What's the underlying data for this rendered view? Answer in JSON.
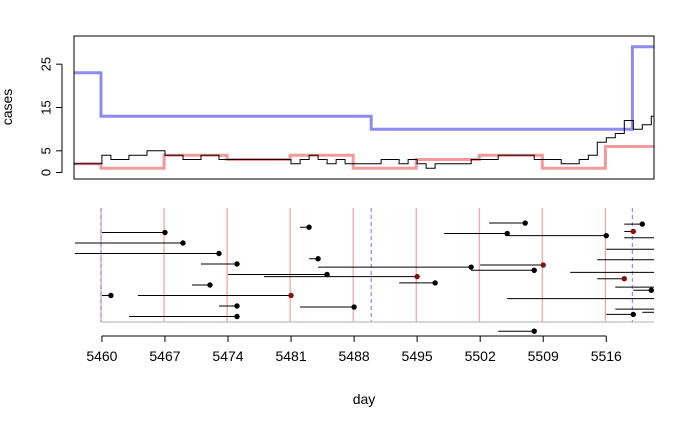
{
  "chart_data": [
    {
      "type": "line",
      "ylabel": "cases",
      "yticks": [
        0,
        5,
        15,
        25
      ],
      "ylim": [
        -1.5,
        31.5
      ],
      "xlim": [
        5456.9,
        5521.3
      ],
      "series": [
        {
          "kind": "step",
          "color": "#8c8cf0",
          "width": 3,
          "x": [
            5456.9,
            5459.9,
            5459.9,
            5489.9,
            5489.9,
            5518.9,
            5518.9,
            5521.3
          ],
          "y": [
            23,
            23,
            13,
            13,
            10,
            10,
            29,
            29
          ]
        },
        {
          "kind": "step",
          "color": "#f59a9a",
          "width": 3,
          "x": [
            5456.9,
            5459.9,
            5459.9,
            5466.9,
            5466.9,
            5473.9,
            5473.9,
            5480.9,
            5480.9,
            5487.9,
            5487.9,
            5494.9,
            5494.9,
            5501.9,
            5501.9,
            5508.9,
            5508.9,
            5515.9,
            5515.9,
            5521.3
          ],
          "y": [
            2,
            2,
            1,
            1,
            4,
            4,
            3,
            3,
            4,
            4,
            1,
            1,
            3,
            3,
            4,
            4,
            1,
            1,
            6,
            6
          ]
        },
        {
          "kind": "step",
          "color": "#000000",
          "width": 1,
          "x": [
            5456.9,
            5459.9,
            5460,
            5461,
            5463,
            5465,
            5467,
            5469,
            5471,
            5473,
            5474,
            5476,
            5481,
            5482,
            5483,
            5484,
            5485,
            5486,
            5487,
            5488,
            5491,
            5492,
            5493,
            5494,
            5495,
            5496,
            5497,
            5498,
            5499,
            5500,
            5501,
            5502,
            5503,
            5504,
            5505,
            5508,
            5509,
            5511,
            5513,
            5514,
            5515,
            5516,
            5517,
            5518,
            5519,
            5520,
            5521,
            5521.3
          ],
          "y": [
            2,
            2,
            4,
            3,
            4,
            5,
            4,
            3,
            4,
            3,
            3,
            3,
            2,
            3,
            4,
            3,
            2,
            3,
            2,
            2,
            3,
            3,
            2,
            3,
            2,
            1,
            2,
            2,
            2,
            2,
            3,
            3,
            3,
            4,
            4,
            3,
            3,
            2,
            3,
            4,
            7,
            8,
            9,
            12,
            10,
            11,
            13,
            13
          ]
        }
      ]
    },
    {
      "type": "scatter",
      "xlabel": "day",
      "xticks": [
        "5460",
        "5467",
        "5474",
        "5481",
        "5488",
        "5495",
        "5502",
        "5509",
        "5516"
      ],
      "xlim": [
        5456.9,
        5521.3
      ],
      "red_vlines": [
        5459.9,
        5466.9,
        5473.9,
        5480.9,
        5487.9,
        5494.9,
        5501.9,
        5508.9,
        5515.9
      ],
      "blue_dashed_vlines": [
        5459.9,
        5489.9,
        5518.9
      ],
      "intervals": [
        {
          "start": 5460,
          "end": 5467,
          "row": 1,
          "point": "dark"
        },
        {
          "start": 5457,
          "end": 5469,
          "row": 2,
          "point": "dark"
        },
        {
          "start": 5457,
          "end": 5473,
          "row": 3,
          "point": "dark"
        },
        {
          "start": 5471,
          "end": 5475,
          "row": 4,
          "point": "dark"
        },
        {
          "start": 5474,
          "end": 5485,
          "row": 5,
          "point": "dark"
        },
        {
          "start": 5470,
          "end": 5472,
          "row": 6,
          "point": "dark"
        },
        {
          "start": 5460,
          "end": 5461,
          "row": 7,
          "point": "dark"
        },
        {
          "start": 5464,
          "end": 5481,
          "row": 7,
          "point": "red"
        },
        {
          "start": 5473,
          "end": 5475,
          "row": 8,
          "point": "dark"
        },
        {
          "start": 5463,
          "end": 5475,
          "row": 9,
          "point": "dark"
        },
        {
          "start": 5482,
          "end": 5483,
          "row": 0.5,
          "point": "dark"
        },
        {
          "start": 5483,
          "end": 5484,
          "row": 3.5,
          "point": "dark"
        },
        {
          "start": 5484,
          "end": 5501,
          "row": 4.3,
          "point": "dark"
        },
        {
          "start": 5478,
          "end": 5495,
          "row": 5.2,
          "point": "red"
        },
        {
          "start": 5493,
          "end": 5497,
          "row": 5.8,
          "point": "dark"
        },
        {
          "start": 5482,
          "end": 5488,
          "row": 8.1,
          "point": "dark"
        },
        {
          "start": 5503,
          "end": 5507,
          "row": 0.1,
          "point": "dark"
        },
        {
          "start": 5498,
          "end": 5505,
          "row": 1.1,
          "point": "dark"
        },
        {
          "start": 5505,
          "end": 5516,
          "row": 1.3,
          "point": "dark"
        },
        {
          "start": 5502,
          "end": 5509,
          "row": 4.1,
          "point": "red"
        },
        {
          "start": 5501,
          "end": 5508,
          "row": 4.6,
          "point": "dark"
        },
        {
          "start": 5504,
          "end": 5508,
          "row": 10.4,
          "point": "dark"
        },
        {
          "start": 5518,
          "end": 5520,
          "row": 0.2,
          "point": "dark"
        },
        {
          "start": 5518,
          "end": 5519,
          "row": 0.9,
          "point": "red"
        },
        {
          "start": 5515,
          "end": 5518,
          "row": 5.4,
          "point": "red"
        },
        {
          "start": 5519,
          "end": 5521,
          "row": 6.5,
          "point": "dark"
        },
        {
          "start": 5516,
          "end": 5519,
          "row": 8.8,
          "point": "dark"
        }
      ],
      "extra_segments": [
        {
          "start": 5518,
          "end": 5521.3,
          "row": 1.5
        },
        {
          "start": 5516,
          "end": 5521.3,
          "row": 2.6
        },
        {
          "start": 5515,
          "end": 5521.3,
          "row": 3.6
        },
        {
          "start": 5512,
          "end": 5521.3,
          "row": 4.8
        },
        {
          "start": 5517,
          "end": 5521.3,
          "row": 6.2
        },
        {
          "start": 5505,
          "end": 5521.3,
          "row": 7.3
        },
        {
          "start": 5517,
          "end": 5521.3,
          "row": 8.3
        },
        {
          "start": 5520,
          "end": 5521.3,
          "row": 8.6
        }
      ],
      "baseline": {
        "start": 5459.9,
        "end": 5521.3
      }
    }
  ]
}
